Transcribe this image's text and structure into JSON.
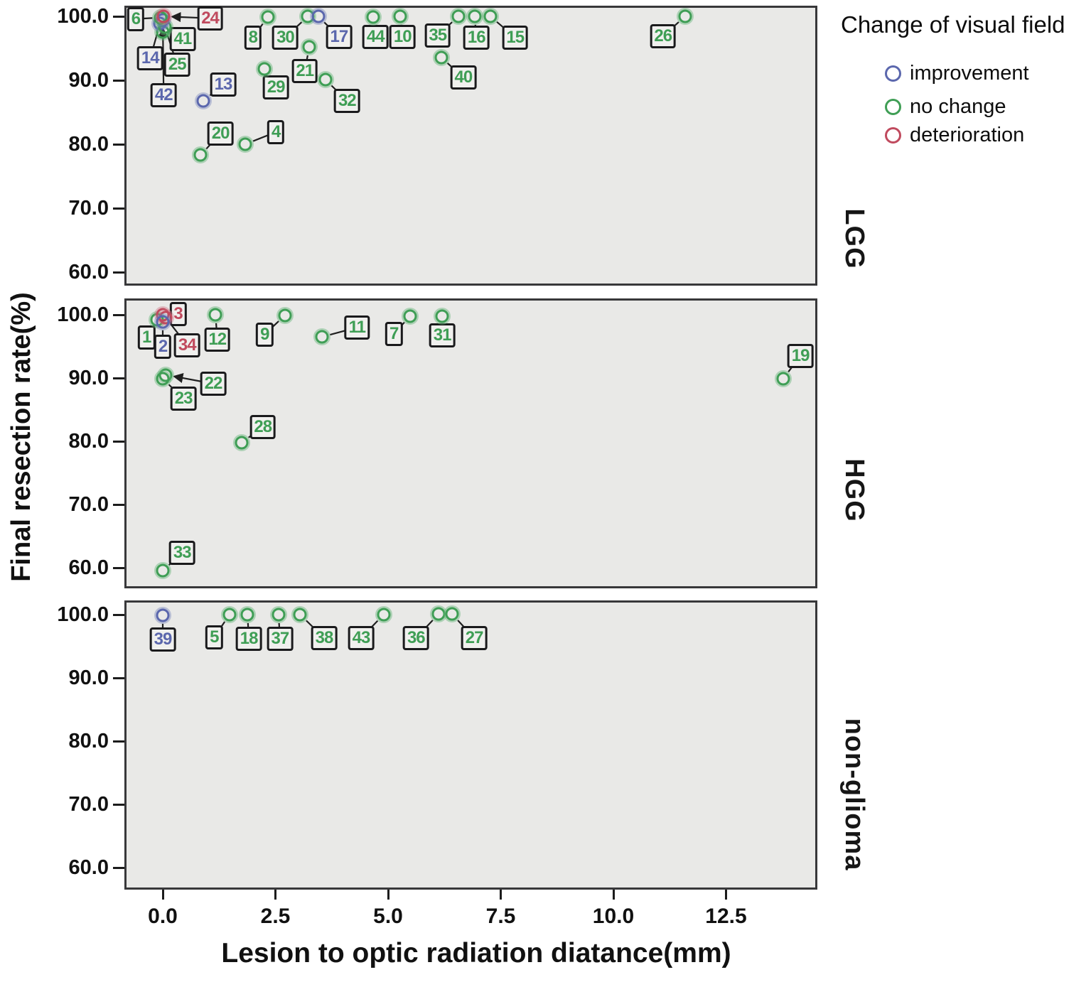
{
  "chart_data": {
    "type": "scatter",
    "xlabel": "Lesion to optic radiation diatance(mm)",
    "ylabel": "Final resection rate(%)",
    "x_ticks": [
      0,
      2.5,
      5.0,
      7.5,
      10.0,
      12.5
    ],
    "x_tick_labels": [
      "0.0",
      "2.5",
      "5.0",
      "7.5",
      "10.0",
      "12.5"
    ],
    "y_ticks": [
      100,
      90,
      80,
      70,
      60
    ],
    "y_tick_labels": [
      "100.0",
      "90.0",
      "80.0",
      "70.0",
      "60.0"
    ],
    "xlim": [
      -0.85,
      14.55
    ],
    "ylim": [
      57.5,
      101.5
    ],
    "grid": false,
    "legend_position": "top-right",
    "legend_title": "Change of visual field",
    "legend_items": [
      {
        "key": "improvement",
        "label": "improvement"
      },
      {
        "key": "no_change",
        "label": "no change"
      },
      {
        "key": "deterioration",
        "label": "deterioration"
      }
    ],
    "point_colors": {
      "improvement": "#5b67ad",
      "no_change": "#3f9e55",
      "deterioration": "#c04a5e"
    },
    "halo_colors": {
      "improvement": "rgba(110,125,185,0.40)",
      "no_change": "rgba(100,180,120,0.45)",
      "deterioration": "rgba(205,110,130,0.40)"
    },
    "panel_bg": "#e9e9e7",
    "panel_border": "#38383a",
    "panels": [
      {
        "facet": "LGG",
        "points": [
          {
            "id": "41",
            "x": 0.0,
            "y": 97.6,
            "change": "no_change",
            "lx": 0.44,
            "ly": 96.5
          },
          {
            "id": "14",
            "x": -0.06,
            "y": 98.9,
            "change": "improvement",
            "lx": -0.28,
            "ly": 93.4
          },
          {
            "id": "25",
            "x": 0.05,
            "y": 98.3,
            "change": "no_change",
            "lx": 0.32,
            "ly": 92.4
          },
          {
            "id": "42",
            "x": 0.0,
            "y": 99.4,
            "change": "improvement",
            "lx": 0.02,
            "ly": 87.7
          },
          {
            "id": "6",
            "x": -0.04,
            "y": 99.8,
            "change": "no_change",
            "lx": -0.6,
            "ly": 99.6
          },
          {
            "id": "24",
            "x": 0.02,
            "y": 100.0,
            "change": "deterioration",
            "lx": 1.05,
            "ly": 99.7
          },
          {
            "id": "13",
            "x": 0.9,
            "y": 86.8,
            "change": "improvement",
            "lx": 1.34,
            "ly": 89.3
          },
          {
            "id": "20",
            "x": 0.84,
            "y": 78.3,
            "change": "no_change",
            "lx": 1.28,
            "ly": 81.7
          },
          {
            "id": "4",
            "x": 1.83,
            "y": 80.0,
            "change": "no_change",
            "lx": 2.51,
            "ly": 81.9
          },
          {
            "id": "29",
            "x": 2.26,
            "y": 91.8,
            "change": "no_change",
            "lx": 2.51,
            "ly": 88.9
          },
          {
            "id": "21",
            "x": 3.25,
            "y": 95.2,
            "change": "no_change",
            "lx": 3.15,
            "ly": 91.4
          },
          {
            "id": "32",
            "x": 3.61,
            "y": 90.1,
            "change": "no_change",
            "lx": 4.09,
            "ly": 86.8
          },
          {
            "id": "8",
            "x": 2.33,
            "y": 99.9,
            "change": "no_change",
            "lx": 2.0,
            "ly": 96.7
          },
          {
            "id": "30",
            "x": 3.22,
            "y": 100.0,
            "change": "no_change",
            "lx": 2.72,
            "ly": 96.7
          },
          {
            "id": "17",
            "x": 3.45,
            "y": 100.0,
            "change": "improvement",
            "lx": 3.91,
            "ly": 96.8
          },
          {
            "id": "44",
            "x": 4.67,
            "y": 99.9,
            "change": "no_change",
            "lx": 4.72,
            "ly": 96.8
          },
          {
            "id": "10",
            "x": 5.27,
            "y": 100.0,
            "change": "no_change",
            "lx": 5.32,
            "ly": 96.8
          },
          {
            "id": "35",
            "x": 6.56,
            "y": 100.0,
            "change": "no_change",
            "lx": 6.1,
            "ly": 97.0
          },
          {
            "id": "16",
            "x": 6.92,
            "y": 100.0,
            "change": "no_change",
            "lx": 6.96,
            "ly": 96.7
          },
          {
            "id": "15",
            "x": 7.27,
            "y": 100.0,
            "change": "no_change",
            "lx": 7.82,
            "ly": 96.7
          },
          {
            "id": "40",
            "x": 6.18,
            "y": 93.6,
            "change": "no_change",
            "lx": 6.67,
            "ly": 90.4
          },
          {
            "id": "26",
            "x": 11.59,
            "y": 100.0,
            "change": "no_change",
            "lx": 11.1,
            "ly": 96.9
          }
        ]
      },
      {
        "facet": "HGG",
        "points": [
          {
            "id": "1",
            "x": -0.12,
            "y": 99.2,
            "change": "no_change",
            "lx": -0.36,
            "ly": 96.4
          },
          {
            "id": "3",
            "x": 0.0,
            "y": 100.0,
            "change": "deterioration",
            "lx": 0.34,
            "ly": 100.1
          },
          {
            "id": "34",
            "x": 0.06,
            "y": 99.6,
            "change": "deterioration",
            "lx": 0.54,
            "ly": 95.2
          },
          {
            "id": "2",
            "x": 0.0,
            "y": 98.9,
            "change": "improvement",
            "lx": 0.0,
            "ly": 95.0
          },
          {
            "id": "12",
            "x": 1.17,
            "y": 100.0,
            "change": "no_change",
            "lx": 1.21,
            "ly": 96.1
          },
          {
            "id": "9",
            "x": 2.71,
            "y": 99.9,
            "change": "no_change",
            "lx": 2.26,
            "ly": 96.9
          },
          {
            "id": "11",
            "x": 3.53,
            "y": 96.5,
            "change": "no_change",
            "lx": 4.31,
            "ly": 98.0
          },
          {
            "id": "7",
            "x": 5.49,
            "y": 99.8,
            "change": "no_change",
            "lx": 5.13,
            "ly": 97.0
          },
          {
            "id": "31",
            "x": 6.2,
            "y": 99.8,
            "change": "no_change",
            "lx": 6.2,
            "ly": 96.7
          },
          {
            "id": "22",
            "x": 0.07,
            "y": 90.5,
            "change": "no_change",
            "lx": 1.12,
            "ly": 89.1
          },
          {
            "id": "23",
            "x": 0.0,
            "y": 89.9,
            "change": "no_change",
            "lx": 0.46,
            "ly": 86.7
          },
          {
            "id": "28",
            "x": 1.75,
            "y": 79.8,
            "change": "no_change",
            "lx": 2.22,
            "ly": 82.2
          },
          {
            "id": "19",
            "x": 13.77,
            "y": 89.9,
            "change": "no_change",
            "lx": 14.15,
            "ly": 93.5
          },
          {
            "id": "33",
            "x": 0.0,
            "y": 59.5,
            "change": "no_change",
            "lx": 0.43,
            "ly": 62.4
          }
        ]
      },
      {
        "facet": "non-glioma",
        "points": [
          {
            "id": "39",
            "x": 0.0,
            "y": 99.9,
            "change": "improvement",
            "lx": 0.0,
            "ly": 96.1
          },
          {
            "id": "5",
            "x": 1.48,
            "y": 100.0,
            "change": "no_change",
            "lx": 1.14,
            "ly": 96.4
          },
          {
            "id": "18",
            "x": 1.88,
            "y": 100.0,
            "change": "no_change",
            "lx": 1.91,
            "ly": 96.2
          },
          {
            "id": "37",
            "x": 2.57,
            "y": 100.0,
            "change": "no_change",
            "lx": 2.6,
            "ly": 96.2
          },
          {
            "id": "38",
            "x": 3.05,
            "y": 100.0,
            "change": "no_change",
            "lx": 3.58,
            "ly": 96.3
          },
          {
            "id": "43",
            "x": 4.9,
            "y": 100.0,
            "change": "no_change",
            "lx": 4.4,
            "ly": 96.3
          },
          {
            "id": "36",
            "x": 6.12,
            "y": 100.1,
            "change": "no_change",
            "lx": 5.62,
            "ly": 96.3
          },
          {
            "id": "27",
            "x": 6.42,
            "y": 100.1,
            "change": "no_change",
            "lx": 6.91,
            "ly": 96.3
          }
        ]
      }
    ]
  }
}
